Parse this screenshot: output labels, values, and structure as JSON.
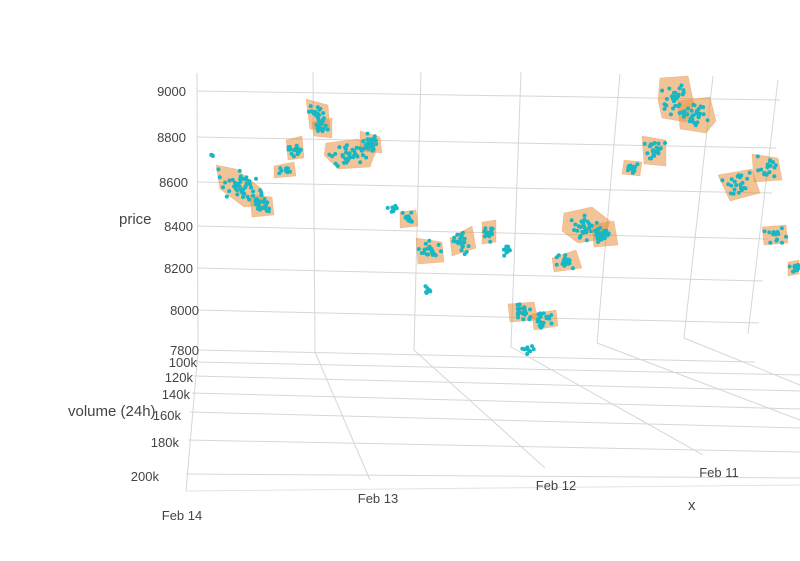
{
  "chart_data": {
    "type": "scatter3d",
    "title": "",
    "axes": {
      "x": {
        "title": "x",
        "tick_labels": [
          "Feb 14",
          "Feb 13",
          "Feb 12",
          "Feb 11"
        ]
      },
      "y": {
        "title": "volume (24h)",
        "tick_labels": [
          "100k",
          "120k",
          "140k",
          "160k",
          "180k",
          "200k"
        ]
      },
      "z": {
        "title": "price",
        "tick_labels": [
          "7800",
          "8000",
          "8200",
          "8400",
          "8600",
          "8800",
          "9000"
        ],
        "range": [
          7800,
          9000
        ]
      }
    },
    "series": [
      {
        "type": "mesh",
        "color": "#e8913f"
      },
      {
        "type": "markers",
        "color": "#17b8c4"
      }
    ],
    "clusters": [
      {
        "price": 8710,
        "volume_k": 175,
        "n": 3
      },
      {
        "price": 8560,
        "volume_k": 165,
        "n": 45
      },
      {
        "price": 8450,
        "volume_k": 195,
        "n": 25
      },
      {
        "price": 8640,
        "volume_k": 135,
        "n": 12
      },
      {
        "price": 8700,
        "volume_k": 170,
        "n": 18
      },
      {
        "price": 8950,
        "volume_k": 150,
        "n": 20
      },
      {
        "price": 8840,
        "volume_k": 175,
        "n": 12
      },
      {
        "price": 8700,
        "volume_k": 160,
        "n": 35
      },
      {
        "price": 8700,
        "volume_k": 190,
        "n": 25
      },
      {
        "price": 8500,
        "volume_k": 150,
        "n": 8
      },
      {
        "price": 8450,
        "volume_k": 170,
        "n": 12
      },
      {
        "price": 8280,
        "volume_k": 130,
        "n": 22
      },
      {
        "price": 8270,
        "volume_k": 160,
        "n": 22
      },
      {
        "price": 8080,
        "volume_k": 140,
        "n": 8
      },
      {
        "price": 8330,
        "volume_k": 180,
        "n": 18
      },
      {
        "price": 8280,
        "volume_k": 110,
        "n": 12
      },
      {
        "price": 8050,
        "volume_k": 130,
        "n": 22
      },
      {
        "price": 8000,
        "volume_k": 160,
        "n": 22
      },
      {
        "price": 7820,
        "volume_k": 140,
        "n": 10
      },
      {
        "price": 8200,
        "volume_k": 150,
        "n": 18
      },
      {
        "price": 8470,
        "volume_k": 120,
        "n": 35
      },
      {
        "price": 8400,
        "volume_k": 160,
        "n": 22
      },
      {
        "price": 8620,
        "volume_k": 100,
        "n": 12
      },
      {
        "price": 8720,
        "volume_k": 130,
        "n": 22
      },
      {
        "price": 9000,
        "volume_k": 150,
        "n": 35
      },
      {
        "price": 8850,
        "volume_k": 170,
        "n": 30
      },
      {
        "price": 8600,
        "volume_k": 120,
        "n": 22
      },
      {
        "price": 8620,
        "volume_k": 140,
        "n": 18
      },
      {
        "price": 8400,
        "volume_k": 150,
        "n": 14
      },
      {
        "price": 8200,
        "volume_k": 170,
        "n": 12
      }
    ]
  }
}
